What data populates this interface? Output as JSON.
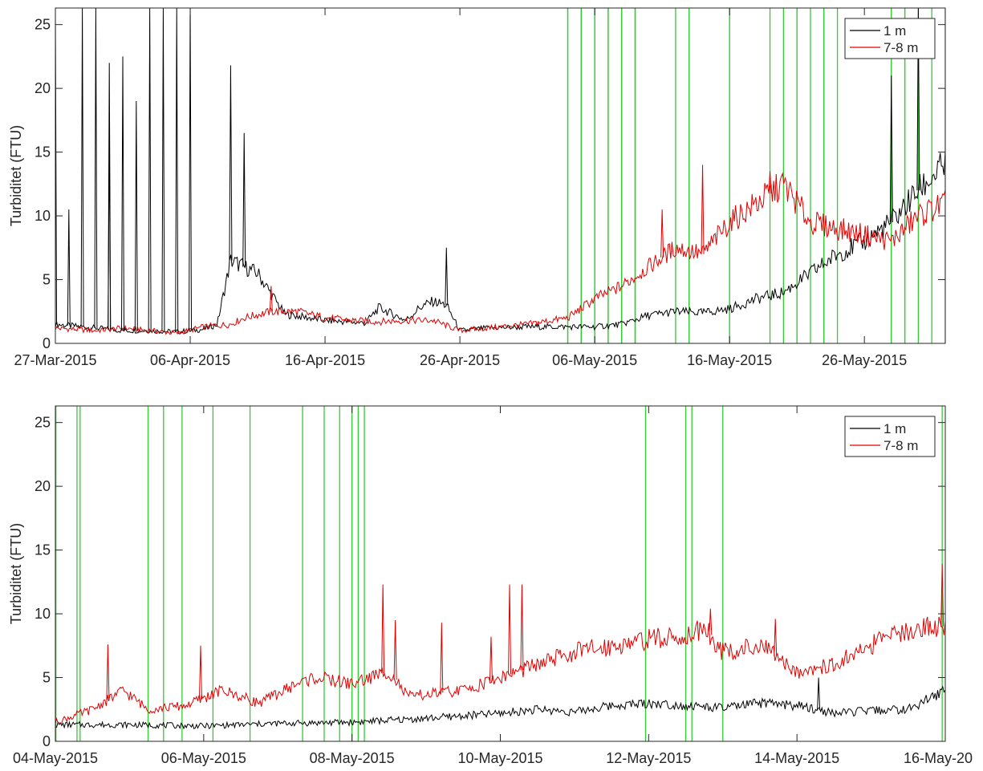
{
  "chart_data": [
    {
      "type": "line",
      "title": "",
      "xlabel": "",
      "ylabel": "Turbiditet (FTU)",
      "x_axis": "date",
      "xlim": [
        "2015-03-27",
        "2015-06-01"
      ],
      "ylim": [
        0,
        26.3
      ],
      "xticks": [
        "2015-03-27",
        "2015-04-06",
        "2015-04-16",
        "2015-04-26",
        "2015-05-06",
        "2015-05-16",
        "2015-05-26"
      ],
      "xtick_labels": [
        "27-Mar-2015",
        "06-Apr-2015",
        "16-Apr-2015",
        "26-Apr-2015",
        "06-May-2015",
        "16-May-2015",
        "26-May-2015"
      ],
      "yticks": [
        0,
        5,
        10,
        15,
        20,
        25
      ],
      "ytick_labels": [
        "0",
        "5",
        "10",
        "15",
        "20",
        "25"
      ],
      "grid": false,
      "legend": {
        "placement": "top-right",
        "entries": [
          "1 m",
          "7-8 m"
        ]
      },
      "series": [
        {
          "name": "1 m",
          "color": "#000000",
          "x": [
            "2015-03-27",
            "2015-03-30",
            "2015-04-01",
            "2015-04-03",
            "2015-04-05",
            "2015-04-07",
            "2015-04-08",
            "2015-04-09",
            "2015-04-10",
            "2015-04-11",
            "2015-04-13",
            "2015-04-16",
            "2015-04-19",
            "2015-04-20",
            "2015-04-22",
            "2015-04-23",
            "2015-04-24",
            "2015-04-25",
            "2015-04-26",
            "2015-04-28",
            "2015-05-01",
            "2015-05-04",
            "2015-05-06",
            "2015-05-08",
            "2015-05-10",
            "2015-05-12",
            "2015-05-14",
            "2015-05-16",
            "2015-05-18",
            "2015-05-20",
            "2015-05-22",
            "2015-05-24",
            "2015-05-26",
            "2015-05-28",
            "2015-05-30",
            "2015-06-01"
          ],
          "y": [
            1.5,
            1.2,
            1.0,
            1.0,
            0.9,
            1.1,
            1.5,
            6.5,
            6.0,
            5.5,
            2.3,
            1.8,
            1.6,
            2.8,
            1.8,
            2.8,
            3.3,
            3.0,
            1.0,
            1.2,
            1.3,
            1.3,
            1.3,
            1.5,
            2.2,
            2.5,
            2.4,
            2.7,
            3.5,
            4.0,
            5.5,
            7.0,
            8.0,
            9.5,
            12.0,
            14.0
          ]
        },
        {
          "name": "7-8 m",
          "color": "#e00000",
          "x": [
            "2015-03-27",
            "2015-03-30",
            "2015-04-01",
            "2015-04-03",
            "2015-04-05",
            "2015-04-07",
            "2015-04-09",
            "2015-04-10",
            "2015-04-12",
            "2015-04-14",
            "2015-04-16",
            "2015-04-18",
            "2015-04-20",
            "2015-04-22",
            "2015-04-24",
            "2015-04-26",
            "2015-04-28",
            "2015-05-01",
            "2015-05-04",
            "2015-05-06",
            "2015-05-08",
            "2015-05-10",
            "2015-05-12",
            "2015-05-14",
            "2015-05-16",
            "2015-05-18",
            "2015-05-20",
            "2015-05-22",
            "2015-05-24",
            "2015-05-26",
            "2015-05-28",
            "2015-05-30",
            "2015-06-01"
          ],
          "y": [
            1.2,
            1.0,
            1.2,
            1.0,
            0.8,
            1.3,
            1.5,
            2.0,
            2.5,
            2.5,
            2.0,
            1.8,
            1.7,
            1.8,
            1.8,
            1.0,
            1.2,
            1.5,
            2.0,
            3.5,
            4.5,
            6.0,
            7.5,
            7.0,
            9.5,
            11.0,
            12.5,
            9.5,
            9.0,
            8.5,
            8.0,
            10.0,
            11.0
          ]
        }
      ],
      "spikes": [
        {
          "series": "1 m",
          "x": [
            "2015-03-27",
            "2015-03-28",
            "2015-03-29",
            "2015-03-30",
            "2015-03-31",
            "2015-03-31",
            "2015-04-01",
            "2015-04-02",
            "2015-04-03",
            "2015-04-04",
            "2015-04-05",
            "2015-04-06",
            "2015-04-09",
            "2015-04-10",
            "2015-04-25",
            "2015-05-28",
            "2015-05-30"
          ],
          "y": [
            26.3,
            10.5,
            26.3,
            26.3,
            22.0,
            16.5,
            22.5,
            19.0,
            26.3,
            26.3,
            26.3,
            26.3,
            21.8,
            16.5,
            7.5,
            21.0,
            26.3
          ]
        },
        {
          "series": "7-8 m",
          "x": [
            "2015-04-12",
            "2015-05-11",
            "2015-05-14",
            "2015-05-19"
          ],
          "y": [
            4.5,
            10.5,
            14.0,
            13.5
          ]
        }
      ],
      "vlines_color": "#33cc33",
      "vlines": [
        "2015-05-04",
        "2015-05-04",
        "2015-05-05",
        "2015-05-05",
        "2015-05-06",
        "2015-05-06",
        "2015-05-07",
        "2015-05-07",
        "2015-05-08",
        "2015-05-08",
        "2015-05-08",
        "2015-05-09",
        "2015-05-09",
        "2015-05-09",
        "2015-05-12",
        "2015-05-13",
        "2015-05-13",
        "2015-05-16",
        "2015-05-16",
        "2015-05-19",
        "2015-05-20",
        "2015-05-21",
        "2015-05-21",
        "2015-05-22",
        "2015-05-23",
        "2015-05-23",
        "2015-05-24",
        "2015-05-28",
        "2015-05-28",
        "2015-05-29",
        "2015-05-29",
        "2015-05-30",
        "2015-05-31",
        "2015-06-01"
      ]
    },
    {
      "type": "line",
      "title": "",
      "xlabel": "",
      "ylabel": "Turbiditet (FTU)",
      "x_axis": "date",
      "xlim": [
        "2015-05-04",
        "2015-05-16"
      ],
      "ylim": [
        0,
        26.3
      ],
      "xticks": [
        "2015-05-04",
        "2015-05-06",
        "2015-05-08",
        "2015-05-10",
        "2015-05-12",
        "2015-05-14",
        "2015-05-16"
      ],
      "xtick_labels": [
        "04-May-2015",
        "06-May-2015",
        "08-May-2015",
        "10-May-2015",
        "12-May-2015",
        "14-May-2015",
        "16-May-20"
      ],
      "yticks": [
        0,
        5,
        10,
        15,
        20,
        25
      ],
      "ytick_labels": [
        "0",
        "5",
        "10",
        "15",
        "20",
        "25"
      ],
      "grid": false,
      "legend": {
        "placement": "top-right",
        "entries": [
          "1 m",
          "7-8 m"
        ]
      },
      "series": [
        {
          "name": "1 m",
          "color": "#000000",
          "x": [
            "2015-05-04 00:00",
            "2015-05-05 00:00",
            "2015-05-06 00:00",
            "2015-05-07 00:00",
            "2015-05-08 00:00",
            "2015-05-09 00:00",
            "2015-05-10 00:00",
            "2015-05-10 12:00",
            "2015-05-11 00:00",
            "2015-05-11 12:00",
            "2015-05-12 00:00",
            "2015-05-12 12:00",
            "2015-05-13 00:00",
            "2015-05-13 12:00",
            "2015-05-14 00:00",
            "2015-05-14 12:00",
            "2015-05-15 00:00",
            "2015-05-15 12:00",
            "2015-05-16 00:00"
          ],
          "y": [
            1.3,
            1.3,
            1.2,
            1.4,
            1.5,
            1.8,
            2.2,
            2.5,
            2.3,
            2.8,
            3.0,
            2.8,
            2.6,
            3.0,
            2.8,
            2.2,
            2.4,
            2.5,
            4.0
          ]
        },
        {
          "name": "7-8 m",
          "color": "#e00000",
          "x": [
            "2015-05-04 00:00",
            "2015-05-04 12:00",
            "2015-05-04 22:00",
            "2015-05-05 06:00",
            "2015-05-05 18:00",
            "2015-05-06 06:00",
            "2015-05-06 18:00",
            "2015-05-07 06:00",
            "2015-05-07 12:00",
            "2015-05-08 00:00",
            "2015-05-08 12:00",
            "2015-05-08 18:00",
            "2015-05-09 12:00",
            "2015-05-10 00:00",
            "2015-05-10 12:00",
            "2015-05-11 00:00",
            "2015-05-11 12:00",
            "2015-05-12 00:00",
            "2015-05-12 12:00",
            "2015-05-12 18:00",
            "2015-05-13 00:00",
            "2015-05-13 12:00",
            "2015-05-14 00:00",
            "2015-05-14 12:00",
            "2015-05-15 00:00",
            "2015-05-15 12:00",
            "2015-05-15 18:00",
            "2015-05-16 00:00"
          ],
          "y": [
            1.5,
            2.5,
            4.0,
            2.5,
            2.8,
            4.0,
            3.0,
            4.5,
            5.0,
            4.5,
            5.5,
            3.5,
            4.0,
            5.0,
            6.0,
            7.0,
            7.5,
            8.0,
            8.2,
            9.0,
            7.0,
            7.5,
            5.5,
            6.0,
            7.5,
            8.8,
            9.0,
            9.0
          ]
        }
      ],
      "spikes": [
        {
          "series": "7-8 m",
          "x": [
            "2015-05-04 17:00",
            "2015-05-05 23:00",
            "2015-05-08 10:00",
            "2015-05-08 14:00",
            "2015-05-09 05:00",
            "2015-05-09 21:00",
            "2015-05-10 03:00",
            "2015-05-10 07:00",
            "2015-05-12 20:00",
            "2015-05-13 17:00",
            "2015-05-15 23:00"
          ],
          "y": [
            7.6,
            7.5,
            12.3,
            9.5,
            9.3,
            8.2,
            12.3,
            12.3,
            10.4,
            9.6,
            13.9
          ]
        },
        {
          "series": "1 m",
          "x": [
            "2015-05-14 07:00"
          ],
          "y": [
            5.0
          ]
        }
      ],
      "vlines_color": "#33cc33",
      "vlines": [
        "2015-05-04 00:10",
        "2015-05-04 07:00",
        "2015-05-04 08:00",
        "2015-05-05 06:00",
        "2015-05-05 11:00",
        "2015-05-05 17:00",
        "2015-05-06 03:00",
        "2015-05-06 15:00",
        "2015-05-07 08:00",
        "2015-05-07 15:00",
        "2015-05-07 20:00",
        "2015-05-08 00:00",
        "2015-05-08 02:00",
        "2015-05-08 04:00",
        "2015-05-11 23:00",
        "2015-05-12 12:00",
        "2015-05-12 14:00",
        "2015-05-13 00:00",
        "2015-05-15 23:00"
      ]
    }
  ]
}
